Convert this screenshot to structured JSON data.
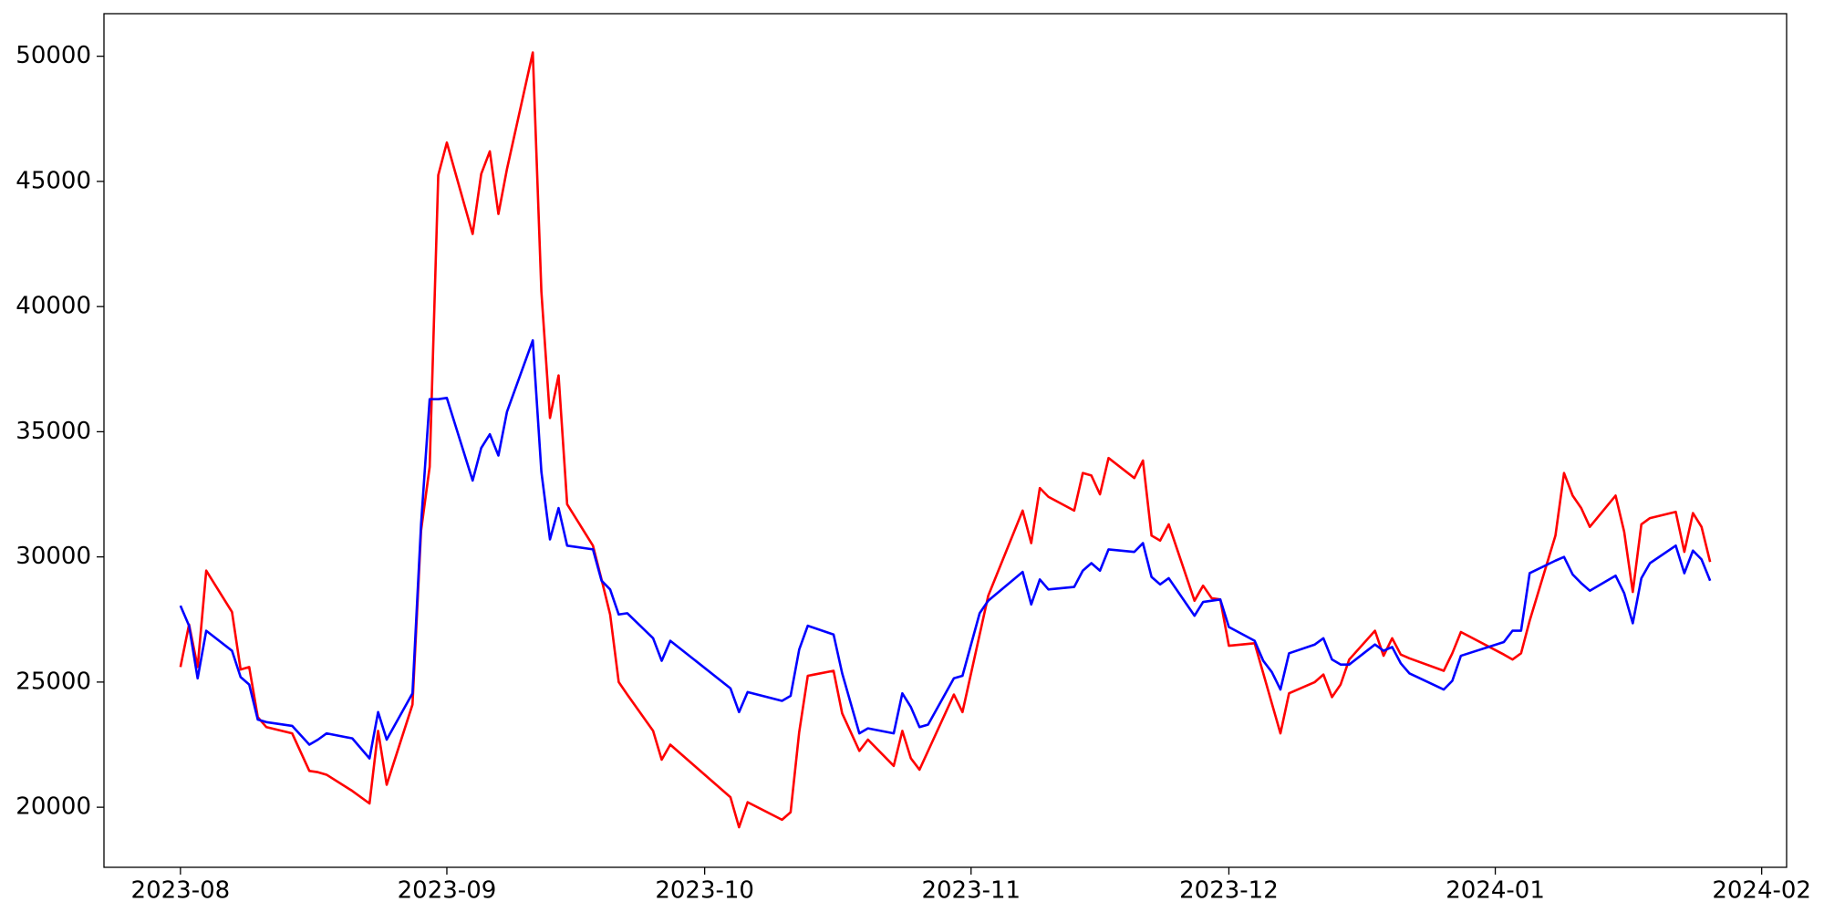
{
  "chart_data": {
    "type": "line",
    "x": [
      0,
      1,
      2,
      3,
      6,
      7,
      8,
      9,
      10,
      13,
      15,
      16,
      17,
      20,
      22,
      23,
      24,
      27,
      28,
      29,
      30,
      31,
      34,
      35,
      36,
      37,
      38,
      41,
      42,
      43,
      44,
      45,
      48,
      49,
      50,
      51,
      52,
      55,
      56,
      57,
      64,
      65,
      66,
      70,
      71,
      72,
      73,
      76,
      77,
      79,
      80,
      83,
      84,
      85,
      86,
      87,
      90,
      91,
      93,
      94,
      98,
      99,
      100,
      101,
      104,
      105,
      106,
      107,
      108,
      111,
      112,
      113,
      114,
      115,
      118,
      119,
      120,
      121,
      122,
      125,
      126,
      127,
      128,
      129,
      132,
      133,
      134,
      135,
      136,
      139,
      140,
      141,
      142,
      143,
      147,
      148,
      149,
      154,
      155,
      156,
      157,
      160,
      161,
      162,
      163,
      164,
      167,
      168,
      169,
      170,
      171,
      174,
      175,
      176,
      177,
      178
    ],
    "series": [
      {
        "color": "#ff0000",
        "values": [
          25600,
          27300,
          25600,
          29450,
          27800,
          25500,
          25600,
          23600,
          23200,
          22950,
          21450,
          21400,
          21300,
          20650,
          20150,
          23050,
          20900,
          24100,
          31050,
          33600,
          45250,
          46550,
          42900,
          45300,
          46200,
          43700,
          45500,
          50150,
          40600,
          35550,
          37250,
          32100,
          30450,
          29100,
          27700,
          25000,
          24500,
          23050,
          21900,
          22500,
          20400,
          19200,
          20200,
          19500,
          19800,
          23000,
          25250,
          25450,
          23750,
          22250,
          22700,
          21650,
          23050,
          21950,
          21500,
          22250,
          24500,
          23800,
          26900,
          28450,
          31850,
          30550,
          32750,
          32400,
          31850,
          33350,
          33250,
          32500,
          33950,
          33150,
          33850,
          30850,
          30650,
          31300,
          28250,
          28850,
          28350,
          28300,
          26450,
          26550,
          25350,
          24150,
          22950,
          24550,
          25000,
          25300,
          24400,
          24900,
          25900,
          27050,
          26050,
          26750,
          26100,
          25950,
          25450,
          26150,
          27000,
          26100,
          25900,
          26150,
          27450,
          30850,
          33350,
          32450,
          31950,
          31200,
          32450,
          31000,
          28600,
          31300,
          31550,
          31800,
          30200,
          31750,
          31200,
          29800
        ]
      },
      {
        "color": "#0000ff",
        "values": [
          28050,
          27250,
          25150,
          27050,
          26250,
          25200,
          24900,
          23500,
          23400,
          23250,
          22500,
          22700,
          22950,
          22750,
          21950,
          23800,
          22700,
          24550,
          31300,
          36300,
          36300,
          36350,
          33050,
          34350,
          34900,
          34050,
          35800,
          38650,
          33400,
          30700,
          31950,
          30450,
          30300,
          29050,
          28700,
          27700,
          27750,
          26750,
          25850,
          26650,
          24750,
          23800,
          24600,
          24250,
          24450,
          26300,
          27250,
          26900,
          25350,
          22950,
          23150,
          22950,
          24550,
          24000,
          23200,
          23300,
          25150,
          25250,
          27750,
          28250,
          29400,
          28100,
          29100,
          28700,
          28800,
          29450,
          29750,
          29450,
          30300,
          30200,
          30550,
          29200,
          28900,
          29150,
          27650,
          28200,
          28250,
          28300,
          27200,
          26650,
          25850,
          25400,
          24700,
          26150,
          26500,
          26750,
          25900,
          25700,
          25700,
          26500,
          26250,
          26400,
          25750,
          25350,
          24700,
          25050,
          26050,
          26600,
          27050,
          27050,
          29350,
          29850,
          30000,
          29300,
          28950,
          28650,
          29250,
          28550,
          27350,
          29150,
          29750,
          30450,
          29350,
          30250,
          29900,
          29050
        ]
      }
    ],
    "xlim": [
      -8.9,
      186.9
    ],
    "xticks": [
      {
        "value": 0,
        "label": "2023-08"
      },
      {
        "value": 31,
        "label": "2023-09"
      },
      {
        "value": 61,
        "label": "2023-10"
      },
      {
        "value": 92,
        "label": "2023-11"
      },
      {
        "value": 122,
        "label": "2023-12"
      },
      {
        "value": 153,
        "label": "2024-01"
      },
      {
        "value": 184,
        "label": "2024-02"
      }
    ],
    "ylim": [
      17600,
      51700
    ],
    "yticks": [
      20000,
      25000,
      30000,
      35000,
      40000,
      45000,
      50000
    ],
    "grid": false
  }
}
